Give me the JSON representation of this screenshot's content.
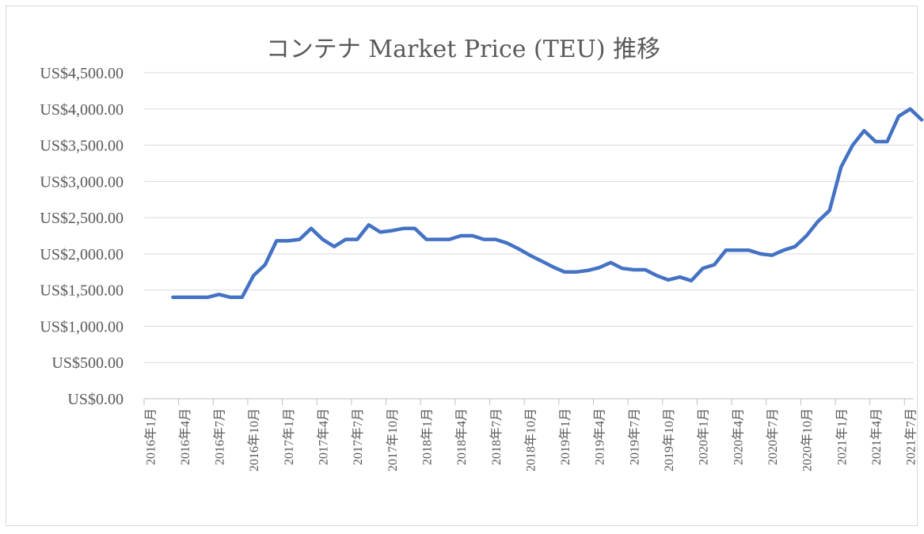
{
  "chart_data": {
    "type": "line",
    "title": "コンテナ Market Price (TEU) 推移",
    "xlabel": "",
    "ylabel": "",
    "ylim": [
      0,
      4500
    ],
    "y_ticks": [
      "US$0.00",
      "US$500.00",
      "US$1,000.00",
      "US$1,500.00",
      "US$2,000.00",
      "US$2,500.00",
      "US$3,000.00",
      "US$3,500.00",
      "US$4,000.00",
      "US$4,500.00"
    ],
    "y_tick_values": [
      0,
      500,
      1000,
      1500,
      2000,
      2500,
      3000,
      3500,
      4000,
      4500
    ],
    "grid": true,
    "legend": "none",
    "x_labels": [
      "2016年1月",
      "2016年4月",
      "2016年7月",
      "2016年10月",
      "2017年1月",
      "2017年4月",
      "2017年7月",
      "2017年10月",
      "2018年1月",
      "2018年4月",
      "2018年7月",
      "2018年10月",
      "2019年1月",
      "2019年4月",
      "2019年7月",
      "2019年10月",
      "2020年1月",
      "2020年4月",
      "2020年7月",
      "2020年10月",
      "2021年1月",
      "2021年4月",
      "2021年7月"
    ],
    "series": [
      {
        "color": "#4472c4",
        "values": [
          1400,
          1400,
          1400,
          1400,
          1440,
          1400,
          1400,
          1700,
          1850,
          2180,
          2180,
          2200,
          2350,
          2200,
          2100,
          2200,
          2200,
          2400,
          2300,
          2320,
          2350,
          2350,
          2200,
          2200,
          2200,
          2250,
          2250,
          2200,
          2200,
          2150,
          2070,
          1980,
          1900,
          1820,
          1750,
          1750,
          1770,
          1810,
          1880,
          1800,
          1780,
          1780,
          1700,
          1640,
          1680,
          1630,
          1800,
          1850,
          2050,
          2050,
          2050,
          2000,
          1980,
          2050,
          2100,
          2250,
          2450,
          2600,
          3200,
          3500,
          3700,
          3550,
          3550,
          3900,
          4000,
          3850
        ]
      }
    ]
  }
}
